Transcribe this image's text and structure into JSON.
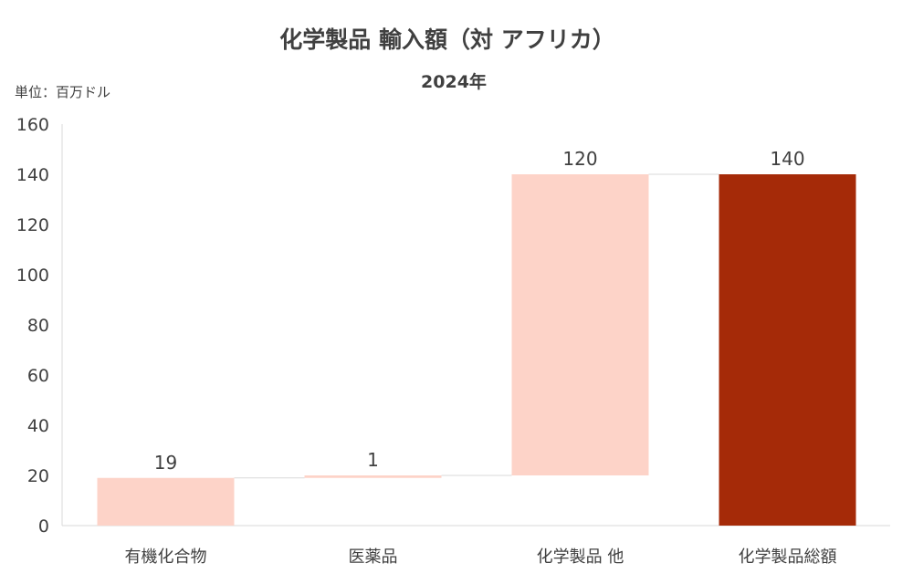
{
  "chart_data": {
    "type": "bar",
    "subtype": "waterfall",
    "title": "化学製品 輸入額（対 アフリカ）",
    "subtitle": "2024年",
    "unit_label": "単位：百万ドル",
    "categories": [
      "有機化合物",
      "医薬品",
      "化学製品 他",
      "化学製品総額"
    ],
    "values": [
      19,
      1,
      120,
      140
    ],
    "data_labels": [
      "19",
      "1",
      "120",
      "140"
    ],
    "bases": [
      0,
      19,
      20,
      0
    ],
    "ylim": [
      0,
      160
    ],
    "yticks": [
      "0",
      "20",
      "40",
      "60",
      "80",
      "100",
      "120",
      "140",
      "160"
    ],
    "grid": false,
    "legend": "none",
    "colors": {
      "component": "#FDD3C8",
      "total": "#A52A08",
      "text": "#404040",
      "axis": "#D9D9D9",
      "connector": "#D9D9D9"
    }
  }
}
